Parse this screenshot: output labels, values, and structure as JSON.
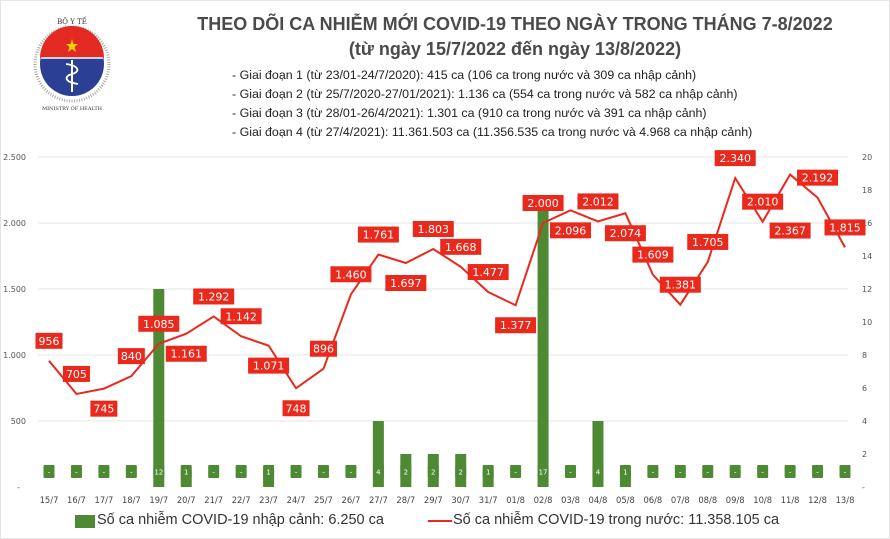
{
  "header": {
    "title": "THEO DÕI CA NHIỄM MỚI COVID-19 THEO NGÀY TRONG THÁNG 7-8/2022",
    "subtitle": "(từ ngày 15/7/2022 đến ngày 13/8/2022)",
    "notes": [
      "- Giai đoạn 1 (từ 23/01-24/7/2020): 415 ca (106 ca trong nước và 309 ca nhập cảnh)",
      "- Giai đoạn 2 (từ 25/7/2020-27/01/2021): 1.136 ca (554 ca trong nước và 582 ca nhập cảnh)",
      "- Giai đoạn 3 (từ 28/01-26/4/2021): 1.301 ca (910 ca trong nước và 391 ca nhập cảnh)",
      "- Giai đoạn 4 (từ 27/4/2021): 11.361.503 ca (11.356.535 ca trong nước và 4.968 ca nhập cảnh)"
    ]
  },
  "logo": {
    "text_top": "BỘ Y TẾ",
    "text_bottom": "MINISTRY OF HEALTH"
  },
  "colors": {
    "bar": "#4e8a33",
    "line": "#e8291c",
    "grid": "#e6e6e6"
  },
  "chart_data": {
    "type": "bar+line",
    "categories": [
      "15/7",
      "16/7",
      "17/7",
      "18/7",
      "19/7",
      "20/7",
      "21/7",
      "22/7",
      "23/7",
      "24/7",
      "25/7",
      "26/7",
      "27/7",
      "28/7",
      "29/7",
      "30/7",
      "31/7",
      "01/8",
      "02/8",
      "03/8",
      "04/8",
      "05/8",
      "06/8",
      "07/8",
      "08/8",
      "09/8",
      "10/8",
      "11/8",
      "12/8",
      "13/8"
    ],
    "series": [
      {
        "name": "Số ca nhiễm COVID-19 nhập cảnh: 6.250 ca",
        "type": "bar",
        "axis": "right",
        "values": [
          0,
          0,
          0,
          0,
          12,
          1,
          0,
          0,
          1,
          0,
          0,
          0,
          4,
          2,
          2,
          2,
          1,
          0,
          17,
          0,
          4,
          1,
          0,
          0,
          0,
          0,
          0,
          0,
          0,
          0
        ]
      },
      {
        "name": "Số ca nhiễm COVID-19 trong nước: 11.358.105 ca",
        "type": "line",
        "axis": "left",
        "values": [
          956,
          705,
          745,
          840,
          1085,
          1161,
          1292,
          1142,
          1071,
          748,
          896,
          1460,
          1761,
          1697,
          1803,
          1668,
          1477,
          1377,
          2000,
          2096,
          2012,
          2074,
          1609,
          1381,
          1705,
          2340,
          2010,
          2367,
          2192,
          1815
        ]
      }
    ],
    "left_axis": {
      "range": [
        0,
        2500
      ],
      "ticks": [
        "-",
        "500",
        "1.000",
        "1.500",
        "2.000",
        "2.500"
      ]
    },
    "right_axis": {
      "range": [
        0,
        20
      ],
      "ticks": [
        "-",
        "2",
        "4",
        "6",
        "8",
        "10",
        "12",
        "14",
        "16",
        "18",
        "20"
      ]
    },
    "zero_label": "-",
    "grid": true,
    "legend": "bottom"
  }
}
